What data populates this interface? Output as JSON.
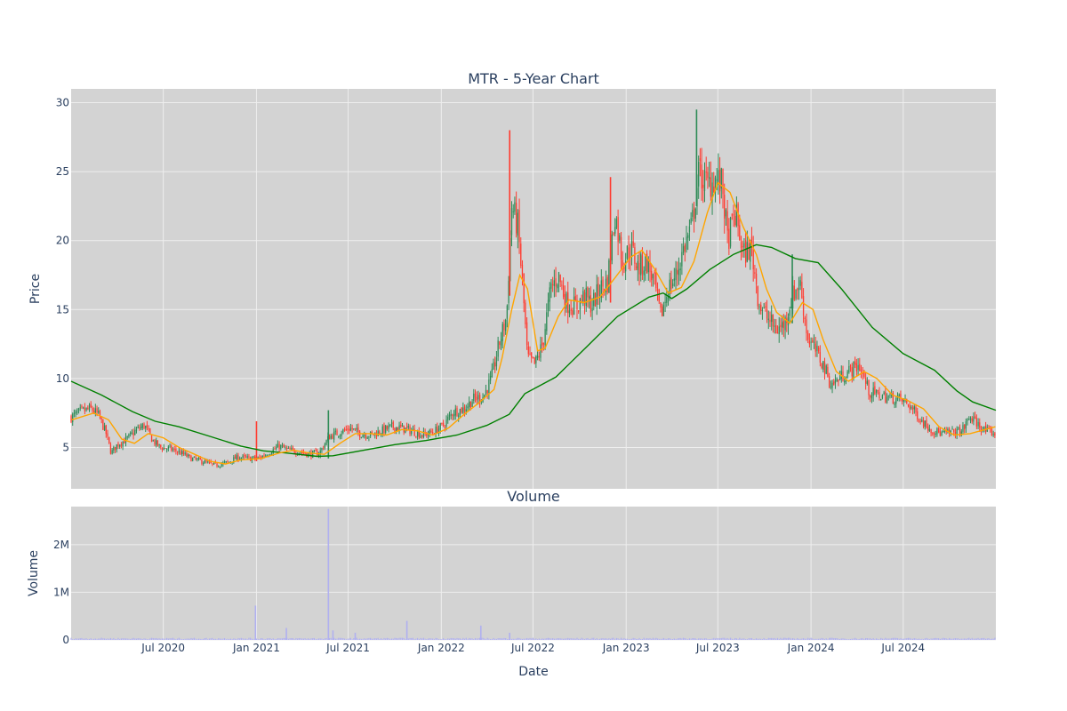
{
  "colors": {
    "plot_bg": "#d3d3d3",
    "grid": "#eeeeee",
    "up": "#2e8b57",
    "down": "#ff3b30",
    "ma_short": "#ffa500",
    "ma_long": "#008000",
    "volume": "#b0b0f0",
    "text": "#2a3f5f"
  },
  "chart_data": [
    {
      "type": "candlestick",
      "title": "MTR - 5-Year Chart",
      "ylabel": "Price",
      "ylim": [
        2,
        31
      ],
      "yticks": [
        5,
        10,
        15,
        20,
        25,
        30
      ],
      "x_range": [
        "2020-01-01",
        "2024-12-31"
      ],
      "grid": true,
      "legend": "none",
      "close_points": [
        [
          "2020-01-02",
          7.2
        ],
        [
          "2020-01-20",
          7.6
        ],
        [
          "2020-02-10",
          7.8
        ],
        [
          "2020-02-25",
          7.3
        ],
        [
          "2020-03-10",
          6.0
        ],
        [
          "2020-03-20",
          4.6
        ],
        [
          "2020-04-01",
          5.2
        ],
        [
          "2020-04-20",
          5.6
        ],
        [
          "2020-05-10",
          6.3
        ],
        [
          "2020-05-25",
          6.6
        ],
        [
          "2020-06-10",
          5.5
        ],
        [
          "2020-06-25",
          5.0
        ],
        [
          "2020-07-15",
          4.9
        ],
        [
          "2020-08-05",
          4.6
        ],
        [
          "2020-08-25",
          4.2
        ],
        [
          "2020-09-15",
          4.0
        ],
        [
          "2020-10-10",
          3.7
        ],
        [
          "2020-11-05",
          3.9
        ],
        [
          "2020-11-25",
          4.3
        ],
        [
          "2020-12-15",
          4.2
        ],
        [
          "2021-01-05",
          4.2
        ],
        [
          "2021-01-25",
          4.6
        ],
        [
          "2021-02-15",
          5.1
        ],
        [
          "2021-03-05",
          4.8
        ],
        [
          "2021-03-25",
          4.7
        ],
        [
          "2021-04-15",
          4.5
        ],
        [
          "2021-05-05",
          4.6
        ],
        [
          "2021-05-25",
          5.8
        ],
        [
          "2021-06-15",
          6.1
        ],
        [
          "2021-07-05",
          6.4
        ],
        [
          "2021-07-25",
          6.0
        ],
        [
          "2021-08-15",
          5.9
        ],
        [
          "2021-09-05",
          6.2
        ],
        [
          "2021-09-25",
          6.5
        ],
        [
          "2021-10-15",
          6.4
        ],
        [
          "2021-11-05",
          6.2
        ],
        [
          "2021-11-25",
          5.9
        ],
        [
          "2021-12-15",
          6.1
        ],
        [
          "2022-01-05",
          6.6
        ],
        [
          "2022-01-25",
          7.6
        ],
        [
          "2022-02-15",
          7.8
        ],
        [
          "2022-03-05",
          8.5
        ],
        [
          "2022-03-25",
          8.7
        ],
        [
          "2022-04-10",
          10.0
        ],
        [
          "2022-04-25",
          12.5
        ],
        [
          "2022-05-10",
          14.5
        ],
        [
          "2022-05-20",
          22.5
        ],
        [
          "2022-06-01",
          21.0
        ],
        [
          "2022-06-10",
          17.0
        ],
        [
          "2022-06-20",
          11.5
        ],
        [
          "2022-07-05",
          11.0
        ],
        [
          "2022-07-20",
          12.5
        ],
        [
          "2022-08-05",
          16.5
        ],
        [
          "2022-08-20",
          17.5
        ],
        [
          "2022-09-05",
          15.5
        ],
        [
          "2022-09-25",
          15.2
        ],
        [
          "2022-10-10",
          16.0
        ],
        [
          "2022-10-25",
          15.3
        ],
        [
          "2022-11-10",
          16.5
        ],
        [
          "2022-11-25",
          17.0
        ],
        [
          "2022-12-10",
          22.0
        ],
        [
          "2022-12-25",
          18.5
        ],
        [
          "2023-01-10",
          19.5
        ],
        [
          "2023-01-25",
          18.0
        ],
        [
          "2023-02-10",
          18.5
        ],
        [
          "2023-02-25",
          17.0
        ],
        [
          "2023-03-10",
          14.5
        ],
        [
          "2023-03-25",
          16.5
        ],
        [
          "2023-04-10",
          17.5
        ],
        [
          "2023-04-25",
          19.5
        ],
        [
          "2023-05-10",
          21.0
        ],
        [
          "2023-05-25",
          25.0
        ],
        [
          "2023-06-10",
          24.0
        ],
        [
          "2023-06-25",
          24.5
        ],
        [
          "2023-07-10",
          24.0
        ],
        [
          "2023-07-20",
          20.0
        ],
        [
          "2023-08-05",
          22.0
        ],
        [
          "2023-08-20",
          19.0
        ],
        [
          "2023-09-05",
          19.5
        ],
        [
          "2023-09-20",
          15.5
        ],
        [
          "2023-10-05",
          14.5
        ],
        [
          "2023-10-25",
          13.5
        ],
        [
          "2023-11-10",
          14.0
        ],
        [
          "2023-11-25",
          16.0
        ],
        [
          "2023-12-10",
          17.0
        ],
        [
          "2023-12-25",
          13.0
        ],
        [
          "2024-01-10",
          12.0
        ],
        [
          "2024-01-25",
          11.0
        ],
        [
          "2024-02-10",
          9.5
        ],
        [
          "2024-02-25",
          10.0
        ],
        [
          "2024-03-15",
          10.5
        ],
        [
          "2024-04-05",
          11.0
        ],
        [
          "2024-04-25",
          9.0
        ],
        [
          "2024-05-15",
          8.8
        ],
        [
          "2024-06-05",
          8.6
        ],
        [
          "2024-06-25",
          8.5
        ],
        [
          "2024-07-15",
          8.0
        ],
        [
          "2024-08-05",
          7.0
        ],
        [
          "2024-08-25",
          6.3
        ],
        [
          "2024-09-15",
          6.0
        ],
        [
          "2024-10-05",
          6.1
        ],
        [
          "2024-10-25",
          6.2
        ],
        [
          "2024-11-10",
          7.2
        ],
        [
          "2024-11-25",
          6.7
        ],
        [
          "2024-12-10",
          6.2
        ],
        [
          "2024-12-30",
          6.0
        ]
      ],
      "series": [
        {
          "role": "short moving average",
          "points": [
            [
              "2020-01-02",
              7.0
            ],
            [
              "2020-02-15",
              7.5
            ],
            [
              "2020-03-15",
              7.0
            ],
            [
              "2020-04-10",
              5.6
            ],
            [
              "2020-05-05",
              5.3
            ],
            [
              "2020-06-01",
              6.0
            ],
            [
              "2020-07-01",
              5.7
            ],
            [
              "2020-08-01",
              5.0
            ],
            [
              "2020-09-01",
              4.5
            ],
            [
              "2020-10-01",
              4.0
            ],
            [
              "2020-11-01",
              3.8
            ],
            [
              "2020-12-01",
              4.1
            ],
            [
              "2021-01-10",
              4.2
            ],
            [
              "2021-02-15",
              4.6
            ],
            [
              "2021-03-15",
              4.8
            ],
            [
              "2021-04-15",
              4.6
            ],
            [
              "2021-05-15",
              4.5
            ],
            [
              "2021-06-15",
              5.3
            ],
            [
              "2021-07-15",
              6.0
            ],
            [
              "2021-08-15",
              6.0
            ],
            [
              "2021-09-15",
              5.9
            ],
            [
              "2021-10-15",
              6.3
            ],
            [
              "2021-11-15",
              6.2
            ],
            [
              "2021-12-15",
              5.9
            ],
            [
              "2022-01-15",
              6.4
            ],
            [
              "2022-02-15",
              7.4
            ],
            [
              "2022-03-15",
              8.2
            ],
            [
              "2022-04-15",
              9.2
            ],
            [
              "2022-05-01",
              11.5
            ],
            [
              "2022-05-20",
              15.0
            ],
            [
              "2022-06-05",
              17.5
            ],
            [
              "2022-06-20",
              16.5
            ],
            [
              "2022-07-10",
              12.0
            ],
            [
              "2022-07-25",
              12.2
            ],
            [
              "2022-08-20",
              14.5
            ],
            [
              "2022-09-10",
              15.7
            ],
            [
              "2022-10-10",
              15.5
            ],
            [
              "2022-11-10",
              15.9
            ],
            [
              "2022-12-10",
              17.3
            ],
            [
              "2023-01-10",
              18.8
            ],
            [
              "2023-02-01",
              19.3
            ],
            [
              "2023-02-25",
              18.0
            ],
            [
              "2023-03-25",
              16.2
            ],
            [
              "2023-04-20",
              16.6
            ],
            [
              "2023-05-15",
              18.5
            ],
            [
              "2023-06-10",
              22.0
            ],
            [
              "2023-07-01",
              24.2
            ],
            [
              "2023-07-25",
              23.5
            ],
            [
              "2023-08-20",
              21.0
            ],
            [
              "2023-09-15",
              19.0
            ],
            [
              "2023-10-05",
              16.5
            ],
            [
              "2023-10-25",
              14.8
            ],
            [
              "2023-11-20",
              14.0
            ],
            [
              "2023-12-15",
              15.5
            ],
            [
              "2024-01-05",
              15.0
            ],
            [
              "2024-01-25",
              12.8
            ],
            [
              "2024-02-20",
              10.5
            ],
            [
              "2024-03-15",
              9.8
            ],
            [
              "2024-04-15",
              10.5
            ],
            [
              "2024-05-10",
              10.0
            ],
            [
              "2024-06-10",
              8.8
            ],
            [
              "2024-07-10",
              8.4
            ],
            [
              "2024-08-10",
              7.8
            ],
            [
              "2024-09-10",
              6.5
            ],
            [
              "2024-10-10",
              5.9
            ],
            [
              "2024-11-10",
              6.0
            ],
            [
              "2024-12-30",
              6.5
            ]
          ]
        },
        {
          "role": "long moving average",
          "points": [
            [
              "2020-01-01",
              9.8
            ],
            [
              "2020-03-01",
              8.8
            ],
            [
              "2020-05-01",
              7.6
            ],
            [
              "2020-06-15",
              6.9
            ],
            [
              "2020-08-01",
              6.5
            ],
            [
              "2020-10-01",
              5.8
            ],
            [
              "2020-12-01",
              5.1
            ],
            [
              "2021-01-15",
              4.75
            ],
            [
              "2021-03-01",
              4.6
            ],
            [
              "2021-05-01",
              4.35
            ],
            [
              "2021-06-01",
              4.4
            ],
            [
              "2021-08-01",
              4.8
            ],
            [
              "2021-10-01",
              5.2
            ],
            [
              "2021-12-01",
              5.5
            ],
            [
              "2022-02-01",
              5.9
            ],
            [
              "2022-04-01",
              6.6
            ],
            [
              "2022-05-15",
              7.4
            ],
            [
              "2022-06-15",
              8.9
            ],
            [
              "2022-08-15",
              10.1
            ],
            [
              "2022-10-15",
              12.3
            ],
            [
              "2022-12-15",
              14.5
            ],
            [
              "2023-02-15",
              15.9
            ],
            [
              "2023-03-15",
              16.2
            ],
            [
              "2023-04-01",
              15.8
            ],
            [
              "2023-05-01",
              16.5
            ],
            [
              "2023-06-15",
              17.9
            ],
            [
              "2023-08-01",
              19.0
            ],
            [
              "2023-09-15",
              19.7
            ],
            [
              "2023-10-15",
              19.5
            ],
            [
              "2023-12-01",
              18.7
            ],
            [
              "2024-01-15",
              18.4
            ],
            [
              "2024-03-01",
              16.5
            ],
            [
              "2024-05-01",
              13.7
            ],
            [
              "2024-07-01",
              11.8
            ],
            [
              "2024-09-01",
              10.6
            ],
            [
              "2024-10-15",
              9.1
            ],
            [
              "2024-11-15",
              8.3
            ],
            [
              "2024-12-31",
              7.7
            ]
          ]
        }
      ],
      "spikes": [
        {
          "date": "2021-01-01",
          "high": 6.9,
          "low": 4.0
        },
        {
          "date": "2021-05-23",
          "high": 7.7,
          "low": 4.2
        },
        {
          "date": "2022-05-16",
          "high": 28.0,
          "low": 16.0
        },
        {
          "date": "2023-05-20",
          "high": 29.5,
          "low": 22.5
        },
        {
          "date": "2022-12-01",
          "high": 24.6,
          "low": 15.5
        },
        {
          "date": "2023-11-25",
          "high": 19.0,
          "low": 14.0
        }
      ]
    },
    {
      "type": "bar",
      "title": "Volume",
      "xlabel": "Date",
      "ylabel": "Volume",
      "ylim": [
        0,
        2800000
      ],
      "yticks": [
        0,
        1000000,
        2000000
      ],
      "ytick_labels": [
        "0",
        "1M",
        "2M"
      ],
      "xticks": [
        "2020-07-01",
        "2021-01-01",
        "2021-07-01",
        "2022-01-01",
        "2022-07-01",
        "2023-01-01",
        "2023-07-01",
        "2024-01-01",
        "2024-07-01"
      ],
      "xtick_labels": [
        "Jul 2020",
        "Jan 2021",
        "Jul 2021",
        "Jan 2022",
        "Jul 2022",
        "Jan 2023",
        "Jul 2023",
        "Jan 2024",
        "Jul 2024"
      ],
      "baseline": 30000,
      "spikes": [
        [
          "2020-12-30",
          720000
        ],
        [
          "2021-03-01",
          250000
        ],
        [
          "2021-05-23",
          2750000
        ],
        [
          "2021-06-01",
          200000
        ],
        [
          "2021-07-15",
          150000
        ],
        [
          "2021-10-25",
          400000
        ],
        [
          "2022-03-20",
          300000
        ],
        [
          "2022-05-16",
          150000
        ]
      ]
    }
  ]
}
